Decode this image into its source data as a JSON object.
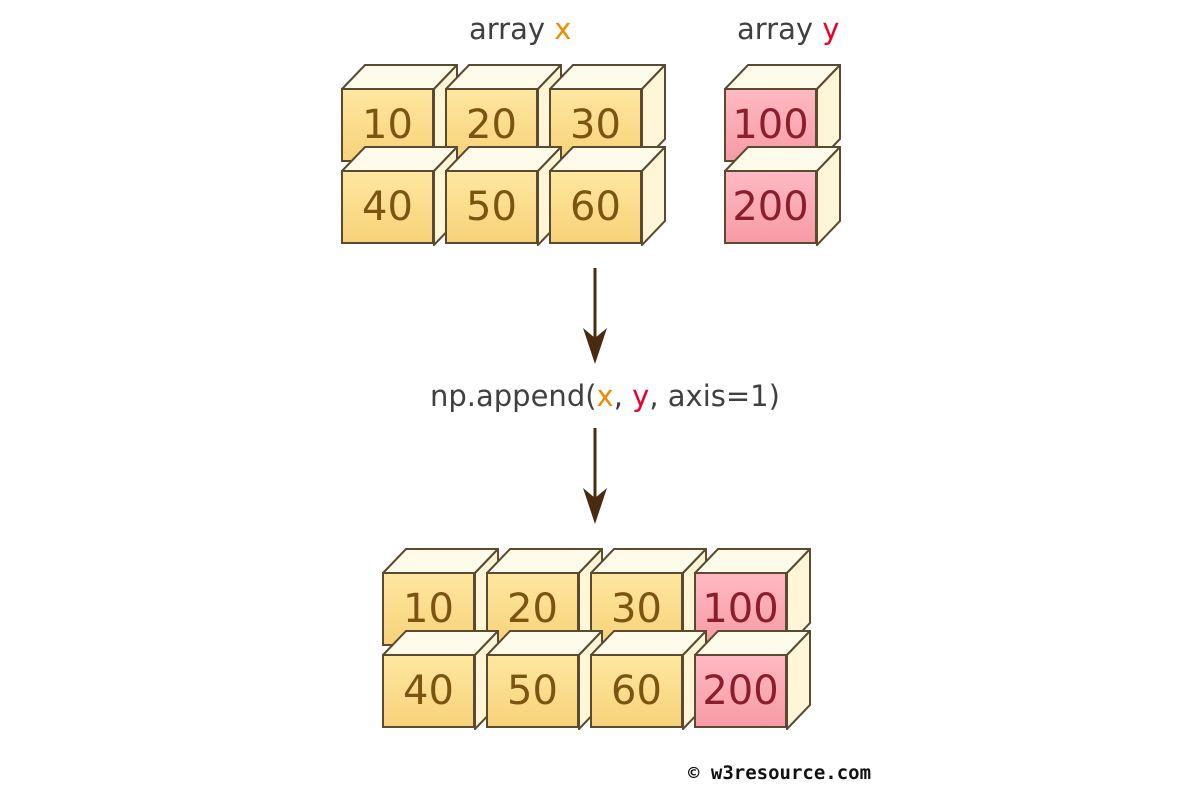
{
  "diagram": {
    "array_x_label": {
      "prefix": "array ",
      "name": "x"
    },
    "array_y_label": {
      "prefix": "array ",
      "name": "y"
    },
    "array_x": [
      [
        10,
        20,
        30
      ],
      [
        40,
        50,
        60
      ]
    ],
    "array_y": [
      [
        100
      ],
      [
        200
      ]
    ],
    "call": {
      "pre": "np.append(",
      "x": "x",
      "sep1": ", ",
      "y": "y",
      "post": ", axis=1)"
    },
    "result": [
      [
        {
          "v": 10,
          "src": "x"
        },
        {
          "v": 20,
          "src": "x"
        },
        {
          "v": 30,
          "src": "x"
        },
        {
          "v": 100,
          "src": "y"
        }
      ],
      [
        {
          "v": 40,
          "src": "x"
        },
        {
          "v": 50,
          "src": "x"
        },
        {
          "v": 60,
          "src": "x"
        },
        {
          "v": 200,
          "src": "y"
        }
      ]
    ],
    "colors": {
      "x_accent": "#f08c00",
      "y_accent": "#e8002a",
      "x_fill": "#f9d888",
      "y_fill": "#fba7b1",
      "arrow": "#4a2b12"
    },
    "copyright": "© w3resource.com"
  }
}
